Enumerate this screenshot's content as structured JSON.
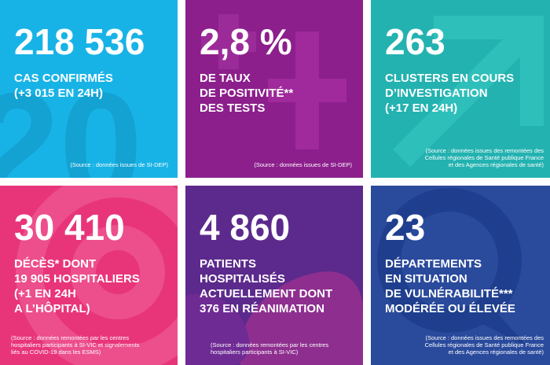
{
  "tiles": [
    {
      "number": "218 536",
      "lines": [
        "CAS CONFIRMÉS",
        "(+3 015 EN 24H)"
      ],
      "source": [
        "(Source : données issues de SI-DEP)"
      ]
    },
    {
      "number": "2,8 %",
      "lines": [
        "DE TAUX",
        "DE POSITIVITÉ**",
        "DES TESTS"
      ],
      "source": [
        "(Source : données issues de SI-DEP)"
      ]
    },
    {
      "number": "263",
      "lines": [
        "CLUSTERS EN COURS",
        "D’INVESTIGATION",
        "(+17 EN 24H)"
      ],
      "source": [
        "(Source : données issues des remontées des",
        "Cellules régionales de Santé publique France",
        "et des Agences régionales de santé)"
      ]
    },
    {
      "number": "30 410",
      "lines": [
        "DÉCÈS* DONT",
        "19 905 HOSPITALIERS",
        "(+1 EN 24H",
        "A L’HÔPITAL)"
      ],
      "source": [
        "(Source : données remontées par les centres",
        "hospitaliers participants à SI-VIC et signalements",
        "liés au COVID-19 dans les ESMS)"
      ]
    },
    {
      "number": "4 860",
      "lines": [
        "PATIENTS",
        "HOSPITALISÉS",
        "ACTUELLEMENT DONT",
        "376 EN RÉANIMATION"
      ],
      "source": [
        "(Source : données remontées par les centres",
        "hospitaliers participants à SI-VIC)"
      ]
    },
    {
      "number": "23",
      "lines": [
        "DÉPARTEMENTS",
        "EN SITUATION",
        "DE VULNÉRABILITÉ***",
        "MODÉRÉE OU ÉLEVÉE"
      ],
      "source": [
        "(Source : données issues des remontées des",
        "Cellules régionales de Santé publique France",
        "et des Agences régionales de santé)"
      ]
    }
  ],
  "colors": {
    "tile1": "#18b3e6",
    "tile2": "#8c1f8c",
    "tile3": "#23b2b0",
    "tile4": "#e8357a",
    "tile5": "#5c2a8c",
    "tile6": "#2a4a9c"
  }
}
